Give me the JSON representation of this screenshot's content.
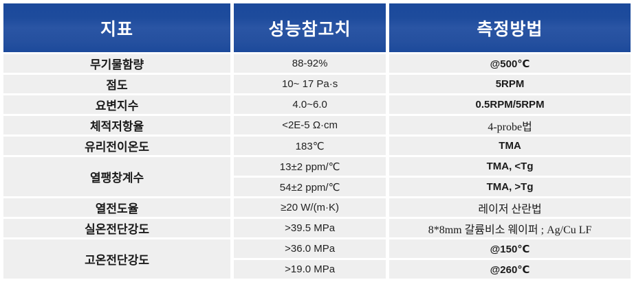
{
  "table": {
    "headers": [
      "지표",
      "성능참고치",
      "측정방법"
    ],
    "rows": [
      {
        "indicator": "무기물함량",
        "value": "88-92%",
        "method": "@500℃"
      },
      {
        "indicator": "점도",
        "value": "10~ 17 Pa·s",
        "method": "5RPM"
      },
      {
        "indicator": "요변지수",
        "value": "4.0~6.0",
        "method": "0.5RPM/5RPM"
      },
      {
        "indicator": "체적저항율",
        "value": "<2E-5 Ω·cm",
        "method": "4-probe법"
      },
      {
        "indicator": "유리전이온도",
        "value": "183℃",
        "method": "TMA"
      },
      {
        "indicator": "열팽창계수",
        "value": "13±2 ppm/℃",
        "method": "TMA, <Tg"
      },
      {
        "value": "54±2 ppm/℃",
        "method": "TMA, >Tg"
      },
      {
        "indicator": "열전도율",
        "value": "≥20 W/(m·K)",
        "method": "레이저 산란법"
      },
      {
        "indicator": "실온전단강도",
        "value": ">39.5 MPa",
        "method": "8*8mm 갈륨비소 웨이퍼 ; Ag/Cu LF"
      },
      {
        "indicator": "고온전단강도",
        "value": ">36.0 MPa",
        "method": "@150℃"
      },
      {
        "value": ">19.0 MPa",
        "method": "@260℃"
      }
    ],
    "colors": {
      "header_bg": "#1d4b9c",
      "header_text": "#ffffff",
      "row_bg": "#efefef",
      "body_text": "#1a1a1a"
    }
  }
}
